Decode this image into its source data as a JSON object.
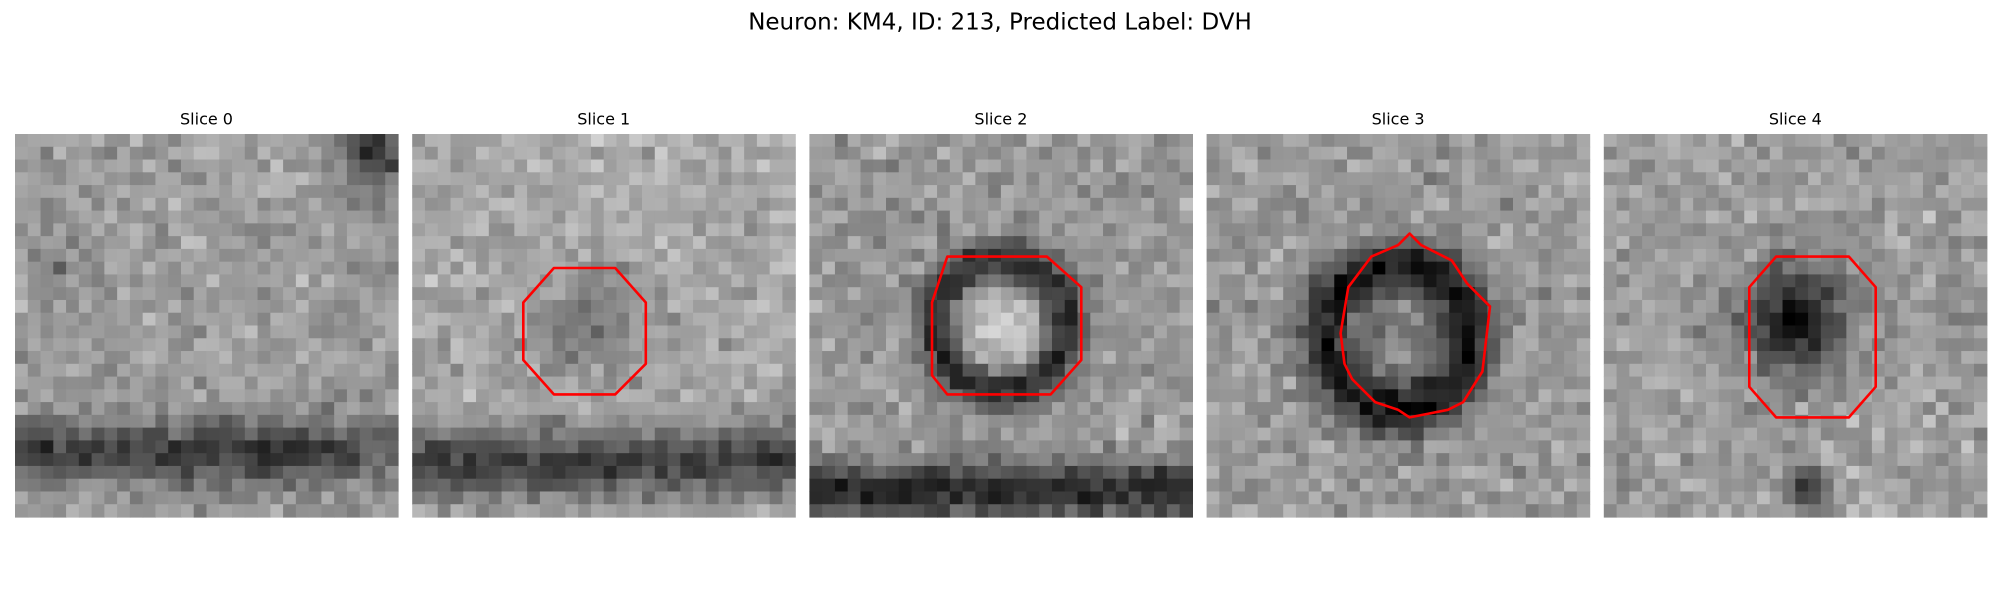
{
  "title": "Neuron: KM4, ID: 213, Predicted Label: DVH",
  "panels": [
    {
      "title": "Slice 0"
    },
    {
      "title": "Slice 1"
    },
    {
      "title": "Slice 2"
    },
    {
      "title": "Slice 3"
    },
    {
      "title": "Slice 4"
    }
  ]
}
